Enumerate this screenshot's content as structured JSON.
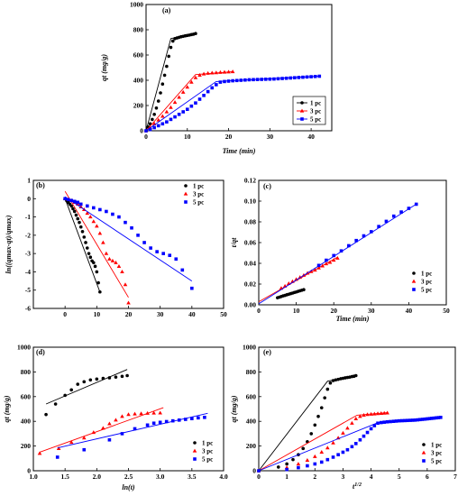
{
  "colors": {
    "s1": "#000000",
    "s3": "#ff0000",
    "s5": "#0000ff"
  },
  "legend_names": [
    "1 pc",
    "3 pc",
    "5 pc"
  ],
  "chart_data": [
    {
      "panel": "(a)",
      "type": "scatter",
      "xlabel": "Time (min)",
      "ylabel": "qt (mg/g)",
      "xlim": [
        0,
        45
      ],
      "ylim": [
        0,
        1000
      ],
      "xticks": [
        0,
        10,
        20,
        30,
        40
      ],
      "yticks": [
        0,
        200,
        400,
        600,
        800,
        1000
      ],
      "xticklabels": [
        "0",
        "10",
        "20",
        "30",
        "40"
      ],
      "legend": "bottom-right",
      "series": [
        {
          "name": "1 pc",
          "marker": "circle",
          "x": [
            0,
            0.5,
            1,
            1.5,
            2,
            2.5,
            3,
            3.5,
            4,
            4.5,
            5,
            5.5,
            6,
            6.5,
            7,
            7.5,
            8,
            8.5,
            9,
            9.5,
            10,
            10.5,
            11,
            11.5,
            12
          ],
          "y": [
            0,
            30,
            55,
            90,
            130,
            180,
            235,
            300,
            370,
            440,
            510,
            590,
            660,
            710,
            730,
            735,
            740,
            745,
            748,
            752,
            755,
            758,
            762,
            765,
            770
          ],
          "line": [
            [
              0,
              0
            ],
            [
              6,
              730
            ],
            [
              12,
              770
            ]
          ]
        },
        {
          "name": "3 pc",
          "marker": "triangle",
          "x": [
            0,
            1,
            2,
            3,
            4,
            5,
            6,
            7,
            8,
            9,
            10,
            11,
            12,
            13,
            14,
            15,
            16,
            17,
            18,
            19,
            20,
            21
          ],
          "y": [
            0,
            25,
            55,
            85,
            115,
            150,
            185,
            225,
            265,
            305,
            345,
            385,
            420,
            440,
            450,
            455,
            458,
            460,
            462,
            464,
            466,
            468
          ],
          "line": [
            [
              0,
              0
            ],
            [
              12,
              445
            ],
            [
              21,
              468
            ]
          ]
        },
        {
          "name": "5 pc",
          "marker": "square",
          "x": [
            0,
            1,
            2,
            3,
            4,
            5,
            6,
            7,
            8,
            9,
            10,
            11,
            12,
            13,
            14,
            15,
            16,
            17,
            18,
            19,
            20,
            21,
            22,
            23,
            24,
            25,
            26,
            27,
            28,
            29,
            30,
            31,
            32,
            33,
            34,
            35,
            36,
            37,
            38,
            39,
            40,
            41,
            42
          ],
          "y": [
            0,
            10,
            25,
            40,
            55,
            70,
            90,
            110,
            130,
            150,
            170,
            195,
            220,
            250,
            280,
            310,
            340,
            365,
            385,
            390,
            393,
            396,
            398,
            400,
            402,
            404,
            405,
            406,
            407,
            408,
            409,
            410,
            412,
            414,
            416,
            418,
            420,
            422,
            424,
            426,
            428,
            430,
            432
          ],
          "line": [
            [
              0,
              0
            ],
            [
              17,
              390
            ],
            [
              42,
              432
            ]
          ]
        }
      ]
    },
    {
      "panel": "(b)",
      "type": "scatter",
      "xlabel": "",
      "ylabel": "ln((qmax-qt)/qmax)",
      "xlim": [
        -10,
        50
      ],
      "ylim": [
        -6,
        1
      ],
      "xticks": [
        0,
        10,
        20,
        30,
        40,
        50
      ],
      "yticks": [
        -6,
        -5,
        -4,
        -3,
        -2,
        -1,
        0,
        1
      ],
      "xticklabels": [
        "0",
        "10",
        "20",
        "30",
        "40",
        "50"
      ],
      "legend": "top-right",
      "series": [
        {
          "name": "1 pc",
          "marker": "circle",
          "x": [
            0,
            0.5,
            1,
            1.5,
            2,
            2.5,
            3,
            3.5,
            4,
            4.5,
            5,
            5.5,
            6,
            6.5,
            7,
            7.5,
            8,
            8.5,
            9,
            9.5,
            10,
            10.5,
            11
          ],
          "y": [
            0,
            -0.1,
            -0.2,
            -0.3,
            -0.4,
            -0.55,
            -0.7,
            -0.9,
            -1.1,
            -1.3,
            -1.55,
            -1.8,
            -2.1,
            -2.4,
            -2.7,
            -3.0,
            -3.2,
            -3.4,
            -3.5,
            -3.7,
            -4.0,
            -4.6,
            -5.1
          ],
          "line": [
            [
              0,
              0
            ],
            [
              11,
              -5.1
            ]
          ]
        },
        {
          "name": "3 pc",
          "marker": "triangle",
          "x": [
            0,
            1,
            2,
            3,
            4,
            5,
            6,
            7,
            8,
            9,
            10,
            11,
            12,
            13,
            14,
            15,
            16,
            17,
            18,
            19,
            20
          ],
          "y": [
            0,
            -0.05,
            -0.1,
            -0.2,
            -0.3,
            -0.45,
            -0.6,
            -0.8,
            -1.0,
            -1.25,
            -1.5,
            -1.9,
            -2.4,
            -3.0,
            -3.3,
            -3.4,
            -3.5,
            -3.7,
            -4.0,
            -4.7,
            -5.7
          ],
          "line": [
            [
              0,
              0.4
            ],
            [
              20,
              -5.4
            ]
          ]
        },
        {
          "name": "5 pc",
          "marker": "square",
          "x": [
            0,
            1,
            2,
            3,
            4,
            5,
            7,
            9,
            11,
            13,
            15,
            17,
            19,
            21,
            23,
            25,
            27,
            29,
            31,
            33,
            35,
            37,
            40
          ],
          "y": [
            0,
            -0.05,
            -0.1,
            -0.15,
            -0.2,
            -0.3,
            -0.4,
            -0.5,
            -0.6,
            -0.7,
            -0.85,
            -1.0,
            -1.3,
            -1.6,
            -2.0,
            -2.4,
            -2.7,
            -2.9,
            -3.0,
            -3.1,
            -3.3,
            -3.9,
            -4.9
          ],
          "line": [
            [
              0,
              0.1
            ],
            [
              40,
              -4.5
            ]
          ]
        }
      ]
    },
    {
      "panel": "(c)",
      "type": "scatter",
      "xlabel": "Time (min)",
      "ylabel": "t/qt",
      "xlim": [
        0,
        50
      ],
      "ylim": [
        0,
        0.12
      ],
      "xticks": [
        0,
        10,
        20,
        30,
        40,
        50
      ],
      "yticks": [
        0,
        0.02,
        0.04,
        0.06,
        0.08,
        0.1,
        0.12
      ],
      "xticklabels": [
        "0",
        "10",
        "20",
        "30",
        "40",
        "50"
      ],
      "yticklabels": [
        "0.00",
        "0.02",
        "0.04",
        "0.06",
        "0.08",
        "0.10",
        "0.12"
      ],
      "legend": "bottom-right",
      "series": [
        {
          "name": "1 pc",
          "marker": "circle",
          "x": [
            5,
            5.5,
            6,
            6.5,
            7,
            7.5,
            8,
            8.5,
            9,
            9.5,
            10,
            10.5,
            11,
            11.5,
            12
          ],
          "y": [
            0.0068,
            0.0074,
            0.008,
            0.0086,
            0.0091,
            0.0097,
            0.0102,
            0.0108,
            0.0113,
            0.0119,
            0.0124,
            0.013,
            0.0135,
            0.0141,
            0.0146
          ],
          "line": [
            [
              5,
              0.0068
            ],
            [
              12,
              0.0152
            ]
          ]
        },
        {
          "name": "3 pc",
          "marker": "triangle",
          "x": [
            6,
            7,
            8,
            9,
            10,
            11,
            12,
            13,
            14,
            15,
            16,
            17,
            18,
            19,
            20,
            21
          ],
          "y": [
            0.016,
            0.018,
            0.0205,
            0.0225,
            0.0245,
            0.0265,
            0.0285,
            0.0305,
            0.032,
            0.0335,
            0.0355,
            0.0375,
            0.0395,
            0.041,
            0.043,
            0.045
          ],
          "line": [
            [
              0,
              0.003
            ],
            [
              21,
              0.046
            ]
          ]
        },
        {
          "name": "5 pc",
          "marker": "square",
          "x": [
            16,
            18,
            20,
            22,
            24,
            26,
            28,
            30,
            32,
            34,
            36,
            38,
            40,
            42
          ],
          "y": [
            0.038,
            0.043,
            0.0475,
            0.052,
            0.057,
            0.062,
            0.0665,
            0.0705,
            0.0755,
            0.0805,
            0.0855,
            0.0895,
            0.093,
            0.097
          ],
          "line": [
            [
              0,
              0.001
            ],
            [
              42,
              0.097
            ]
          ]
        }
      ]
    },
    {
      "panel": "(d)",
      "type": "scatter",
      "xlabel": "ln(t)",
      "ylabel": "qt (mg/g)",
      "xlim": [
        1.0,
        4.0
      ],
      "ylim": [
        0,
        1000
      ],
      "xticks": [
        1.0,
        1.5,
        2.0,
        2.5,
        3.0,
        3.5,
        4.0
      ],
      "yticks": [
        0,
        200,
        400,
        600,
        800,
        1000
      ],
      "xticklabels": [
        "1.0",
        "1.5",
        "2.0",
        "2.5",
        "3.0",
        "3.5",
        "4.0"
      ],
      "legend": "bottom-right",
      "series": [
        {
          "name": "1 pc",
          "marker": "circle",
          "x": [
            1.2,
            1.35,
            1.5,
            1.6,
            1.7,
            1.8,
            1.9,
            2.0,
            2.1,
            2.2,
            2.3,
            2.4,
            2.48
          ],
          "y": [
            455,
            540,
            610,
            655,
            700,
            720,
            735,
            742,
            748,
            752,
            758,
            764,
            770
          ],
          "line": [
            [
              1.2,
              540
            ],
            [
              2.48,
              820
            ]
          ]
        },
        {
          "name": "3 pc",
          "marker": "triangle",
          "x": [
            1.1,
            1.4,
            1.6,
            1.8,
            1.95,
            2.1,
            2.2,
            2.3,
            2.4,
            2.5,
            2.6,
            2.7,
            2.8,
            2.9,
            3.0
          ],
          "y": [
            140,
            180,
            230,
            265,
            310,
            345,
            380,
            410,
            440,
            455,
            460,
            462,
            465,
            467,
            468
          ],
          "line": [
            [
              1.1,
              150
            ],
            [
              3.05,
              510
            ]
          ]
        },
        {
          "name": "5 pc",
          "marker": "square",
          "x": [
            1.38,
            1.8,
            2.2,
            2.4,
            2.6,
            2.8,
            2.9,
            3.0,
            3.1,
            3.2,
            3.3,
            3.4,
            3.5,
            3.6,
            3.7
          ],
          "y": [
            110,
            170,
            250,
            300,
            340,
            370,
            385,
            392,
            398,
            404,
            410,
            416,
            422,
            428,
            432
          ],
          "line": [
            [
              1.38,
              185
            ],
            [
              3.75,
              465
            ]
          ]
        }
      ]
    },
    {
      "panel": "(e)",
      "type": "scatter",
      "xlabel": "t1/2",
      "ylabel": "qt (mg/g)",
      "xlim": [
        0,
        7
      ],
      "ylim": [
        0,
        1000
      ],
      "xticks": [
        0,
        1,
        2,
        3,
        4,
        5,
        6,
        7
      ],
      "yticks": [
        0,
        200,
        400,
        600,
        800,
        1000
      ],
      "xticklabels": [
        "0",
        "1",
        "2",
        "3",
        "4",
        "5",
        "6",
        "7"
      ],
      "legend": "bottom-right",
      "series": [
        {
          "name": "1 pc",
          "marker": "circle",
          "x": [
            0,
            0.7,
            1.0,
            1.22,
            1.41,
            1.58,
            1.73,
            1.87,
            2.0,
            2.12,
            2.24,
            2.35,
            2.45,
            2.55,
            2.65,
            2.74,
            2.83,
            2.92,
            3.0,
            3.08,
            3.16,
            3.24,
            3.32,
            3.39,
            3.46
          ],
          "y": [
            0,
            30,
            55,
            90,
            130,
            180,
            235,
            300,
            370,
            440,
            510,
            590,
            660,
            710,
            730,
            735,
            740,
            745,
            748,
            752,
            755,
            758,
            762,
            765,
            770
          ],
          "line": [
            [
              0,
              0
            ],
            [
              2.45,
              725
            ],
            [
              3.46,
              770
            ]
          ]
        },
        {
          "name": "3 pc",
          "marker": "triangle",
          "x": [
            0,
            1.0,
            1.41,
            1.73,
            2.0,
            2.24,
            2.45,
            2.65,
            2.83,
            3.0,
            3.16,
            3.32,
            3.46,
            3.61,
            3.74,
            3.87,
            4.0,
            4.12,
            4.24,
            4.36,
            4.47,
            4.58
          ],
          "y": [
            0,
            25,
            55,
            85,
            115,
            150,
            185,
            225,
            265,
            305,
            345,
            385,
            420,
            440,
            450,
            455,
            458,
            460,
            462,
            464,
            466,
            468
          ],
          "line": [
            [
              0,
              0
            ],
            [
              3.5,
              450
            ],
            [
              4.58,
              470
            ]
          ]
        },
        {
          "name": "5 pc",
          "marker": "square",
          "x": [
            0,
            1.0,
            1.41,
            1.73,
            2.0,
            2.24,
            2.45,
            2.65,
            2.83,
            3.0,
            3.16,
            3.32,
            3.46,
            3.61,
            3.74,
            3.87,
            4.0,
            4.12,
            4.24,
            4.36,
            4.47,
            4.58,
            4.69,
            4.8,
            4.9,
            5.0,
            5.1,
            5.2,
            5.29,
            5.39,
            5.48,
            5.57,
            5.66,
            5.74,
            5.83,
            5.92,
            6.0,
            6.08,
            6.16,
            6.24,
            6.32,
            6.4,
            6.48
          ],
          "y": [
            0,
            10,
            25,
            40,
            55,
            70,
            90,
            110,
            130,
            150,
            170,
            195,
            220,
            250,
            280,
            310,
            340,
            365,
            385,
            390,
            393,
            396,
            398,
            400,
            402,
            404,
            405,
            406,
            407,
            408,
            409,
            410,
            412,
            414,
            416,
            418,
            420,
            422,
            424,
            426,
            428,
            430,
            432
          ],
          "line": [
            [
              0,
              0
            ],
            [
              4.25,
              390
            ],
            [
              6.48,
              432
            ]
          ]
        }
      ]
    }
  ]
}
